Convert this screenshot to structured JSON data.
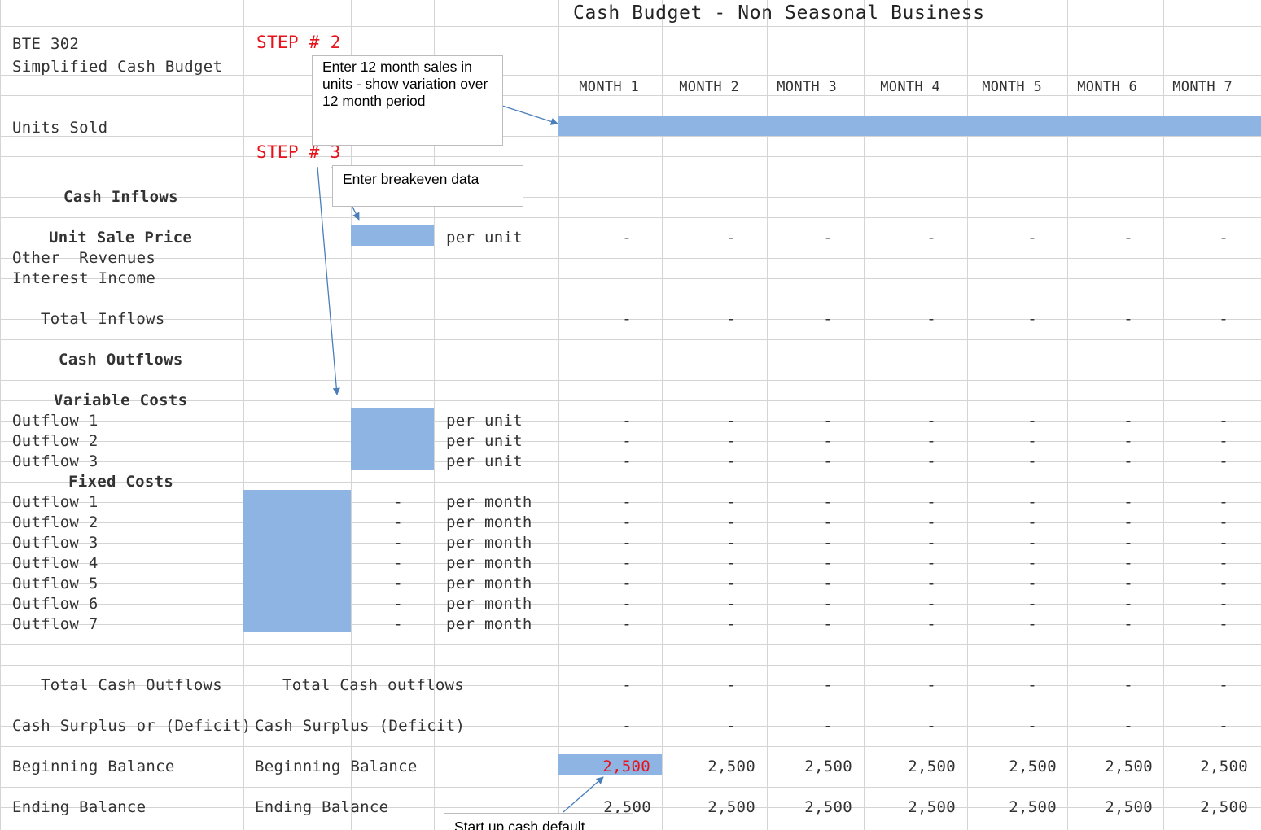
{
  "sheet": {
    "title": "Cash Budget - Non Seasonal Business",
    "course": "BTE 302",
    "subtitle": "Simplified Cash Budget",
    "steps": {
      "step2": "STEP # 2",
      "step3": "STEP # 3"
    },
    "callouts": {
      "sales": "Enter 12 month sales in units - show variation over 12 month period",
      "breakeven": "Enter breakeven data",
      "startup": "Start up cash default"
    },
    "months": [
      "MONTH 1",
      "MONTH 2",
      "MONTH 3",
      "MONTH 4",
      "MONTH 5",
      "MONTH 6",
      "MONTH 7"
    ],
    "labels": {
      "units_sold": "Units Sold",
      "cash_inflows": "Cash Inflows",
      "unit_sale_price": "Unit Sale Price",
      "other_revenues": "Other  Revenues",
      "interest_income": "Interest Income",
      "total_inflows": "Total Inflows",
      "cash_outflows": "Cash Outflows",
      "variable_costs": "Variable Costs",
      "fixed_costs": "Fixed Costs",
      "total_cash_outflows": "Total Cash Outflows",
      "total_cash_outflows_b": "Total Cash outflows",
      "cash_surplus": "Cash Surplus or (Deficit)",
      "cash_surplus_b": "Cash Surplus (Deficit)",
      "beginning_balance": "Beginning Balance",
      "beginning_balance_b": "Beginning Balance",
      "ending_balance": "Ending Balance",
      "ending_balance_b": "Ending Balance",
      "per_unit": "per unit",
      "per_month": "per month"
    },
    "variable_outflows": [
      "Outflow 1",
      "Outflow 2",
      "Outflow 3"
    ],
    "fixed_outflows": [
      "Outflow 1",
      "Outflow 2",
      "Outflow 3",
      "Outflow 4",
      "Outflow 5",
      "Outflow 6",
      "Outflow 7"
    ],
    "dash": "-",
    "beginning_balances": [
      "2,500",
      "2,500",
      "2,500",
      "2,500",
      "2,500",
      "2,500",
      "2,500"
    ],
    "ending_balances": [
      "2,500",
      "2,500",
      "2,500",
      "2,500",
      "2,500",
      "2,500",
      "2,500"
    ],
    "colors": {
      "input_fill": "#8eb4e3",
      "gridline": "#d4d4d4",
      "step_red": "#e8121b",
      "arrow": "#4a7ebb"
    }
  }
}
